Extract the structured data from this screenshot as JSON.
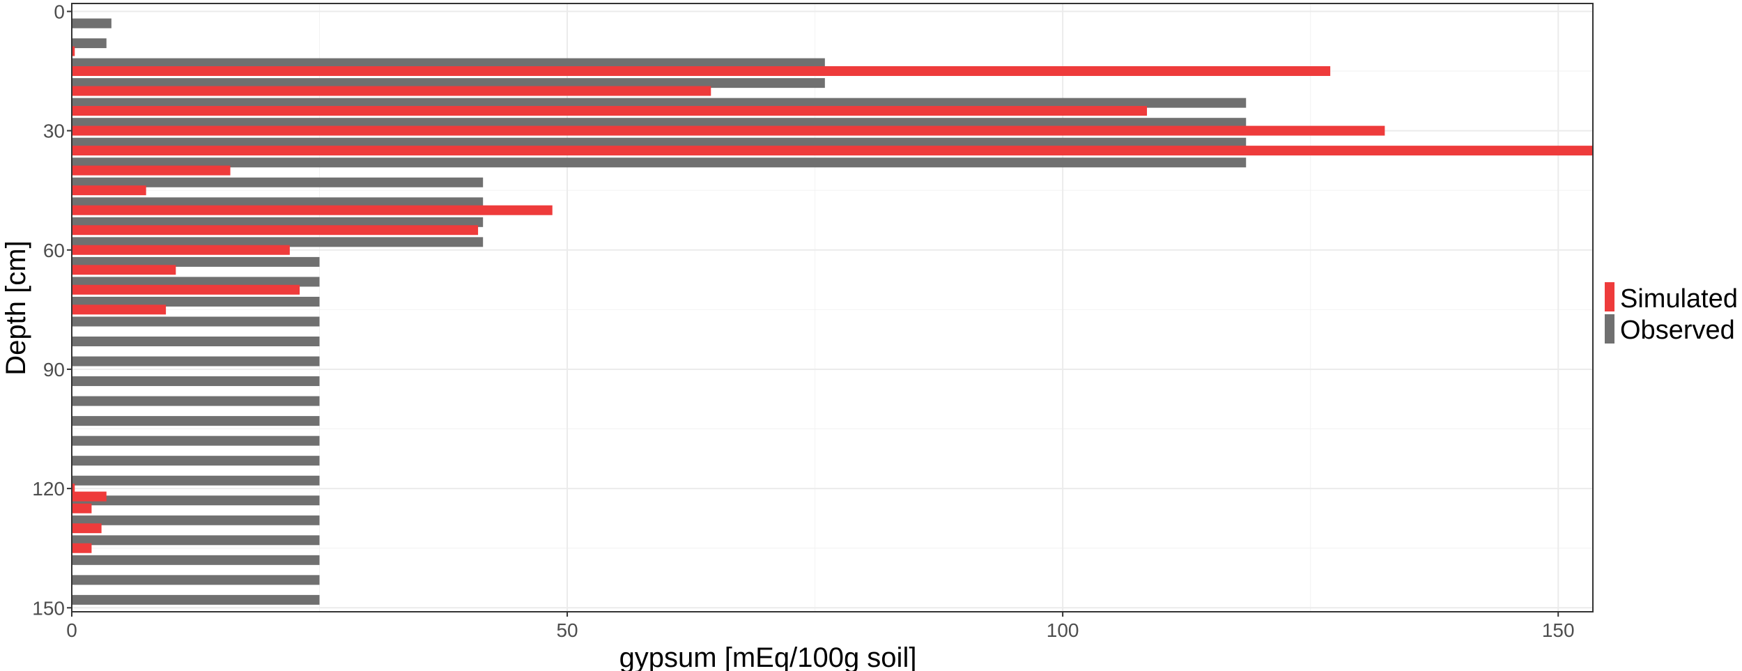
{
  "chart_data": {
    "type": "bar",
    "orientation": "horizontal",
    "xlabel": "gypsum [mEq/100g soil]",
    "ylabel": "Depth [cm]",
    "xlim": [
      0,
      153.5
    ],
    "ylim": [
      151,
      -2
    ],
    "x_ticks": [
      0,
      50,
      100,
      150
    ],
    "y_ticks": [
      0,
      30,
      60,
      90,
      120,
      150
    ],
    "grid": true,
    "legend_position": "right",
    "legend": [
      {
        "label": "Simulated",
        "color": "#ee3b3b"
      },
      {
        "label": "Observed",
        "color": "#707070"
      }
    ],
    "series": [
      {
        "name": "Simulated",
        "color": "#ee3b3b",
        "depths": [
          10,
          15,
          20,
          25,
          30,
          35,
          40,
          45,
          50,
          55,
          60,
          65,
          70,
          75,
          120,
          122,
          125,
          130,
          135
        ],
        "values": [
          0.3,
          127,
          64.5,
          108.5,
          132.5,
          153.5,
          16,
          7.5,
          48.5,
          41,
          22,
          10.5,
          23,
          9.5,
          0.3,
          3.5,
          2,
          3,
          2
        ]
      },
      {
        "name": "Observed",
        "color": "#707070",
        "depths": [
          3,
          8,
          13,
          18,
          23,
          28,
          33,
          38,
          43,
          48,
          53,
          58,
          63,
          68,
          73,
          78,
          83,
          88,
          93,
          98,
          103,
          108,
          113,
          118,
          123,
          128,
          133,
          138,
          143,
          148
        ],
        "values": [
          4,
          3.5,
          76,
          76,
          118.5,
          118.5,
          118.5,
          118.5,
          41.5,
          41.5,
          41.5,
          41.5,
          25,
          25,
          25,
          25,
          25,
          25,
          25,
          25,
          25,
          25,
          25,
          25,
          25,
          25,
          25,
          25,
          25,
          25
        ]
      }
    ]
  }
}
